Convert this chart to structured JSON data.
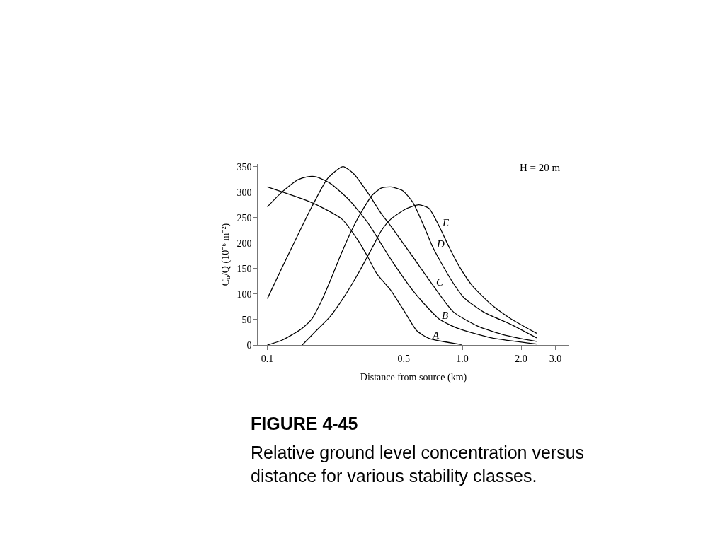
{
  "chart_data": {
    "type": "line",
    "xlabel": "Distance from source (km)",
    "ylabel": "C$_{u}$/Q (10⁻⁶ m⁻²)",
    "log": "x",
    "legend": false,
    "marker": "none",
    "line_style": "solid",
    "xlim": [
      0.09,
      3.5
    ],
    "ylim": [
      0,
      355
    ],
    "xticks": [
      0.1,
      0.5,
      {
        "value": 1,
        "label": "1.0"
      },
      {
        "value": 2,
        "label": "2.0"
      },
      {
        "value": 3,
        "label": "3.0"
      }
    ],
    "yticks": [
      0,
      50,
      100,
      150,
      200,
      250,
      300,
      350
    ],
    "series": [
      {
        "name": "A",
        "color": "#000000",
        "x": [
          0.1,
          0.155,
          0.188,
          0.241,
          0.292,
          0.327,
          0.364,
          0.43,
          0.506,
          0.584,
          0.674,
          0.989
        ],
        "values": [
          310,
          285,
          271,
          247,
          205,
          173,
          140,
          107,
          65,
          28,
          13,
          1
        ]
      },
      {
        "name": "B",
        "color": "#000000",
        "x": [
          0.1,
          0.118,
          0.143,
          0.16,
          0.178,
          0.21,
          0.262,
          0.327,
          0.43,
          0.557,
          0.643,
          0.76,
          0.942,
          1.41,
          2.4
        ],
        "values": [
          271,
          299,
          324,
          330,
          330,
          317,
          285,
          240,
          168,
          107,
          79,
          51,
          33,
          14,
          2
        ]
      },
      {
        "name": "C",
        "color": "#000000",
        "x": [
          0.1,
          0.118,
          0.143,
          0.169,
          0.204,
          0.244,
          0.277,
          0.327,
          0.385,
          0.43,
          0.557,
          0.707,
          0.899,
          1.2,
          1.67,
          2.4
        ],
        "values": [
          91,
          149,
          215,
          271,
          327,
          350,
          336,
          299,
          257,
          233,
          173,
          117,
          65,
          37,
          19,
          7
        ]
      },
      {
        "name": "D",
        "color": "#000000",
        "x": [
          0.1,
          0.118,
          0.135,
          0.151,
          0.169,
          0.188,
          0.21,
          0.241,
          0.277,
          0.309,
          0.345,
          0.385,
          0.43,
          0.493,
          0.557,
          0.627,
          0.707,
          0.798,
          0.899,
          1.017,
          1.28,
          1.78,
          2.4
        ],
        "values": [
          0,
          9,
          21,
          33,
          51,
          84,
          126,
          182,
          233,
          266,
          294,
          308,
          310,
          303,
          280,
          238,
          191,
          154,
          121,
          93,
          65,
          40,
          14
        ]
      },
      {
        "name": "E",
        "color": "#000000",
        "x": [
          0.151,
          0.178,
          0.21,
          0.246,
          0.292,
          0.345,
          0.385,
          0.43,
          0.519,
          0.598,
          0.674,
          0.76,
          0.857,
          0.964,
          1.12,
          1.41,
          1.78,
          2.4
        ],
        "values": [
          0,
          28,
          56,
          93,
          140,
          191,
          225,
          247,
          268,
          275,
          268,
          233,
          191,
          154,
          117,
          79,
          51,
          23
        ]
      }
    ],
    "annotations": [
      "H = 20 m",
      "FIGURE 4-45",
      "Relative ground level concentration versus distance for various stability classes."
    ]
  }
}
